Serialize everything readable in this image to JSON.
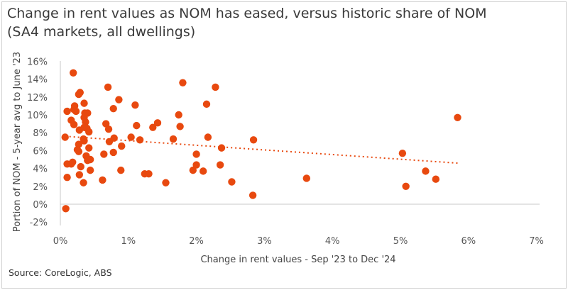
{
  "chart_data": {
    "type": "scatter",
    "title": "Change in rent values as NOM has eased, versus historic share of NOM (SA4 markets, all dwellings)",
    "xlabel": "Change in rent values - Sep '23 to Dec '24",
    "ylabel": "Portion of NOM - 5-year avg to June '23",
    "xlim": [
      0,
      7
    ],
    "ylim": [
      -2,
      16
    ],
    "x_ticks": [
      "0%",
      "1%",
      "2%",
      "3%",
      "4%",
      "5%",
      "6%",
      "7%"
    ],
    "y_ticks": [
      "-2%",
      "0%",
      "2%",
      "4%",
      "6%",
      "8%",
      "10%",
      "12%",
      "14%",
      "16%"
    ],
    "grid": false,
    "trendline": {
      "style": "dotted",
      "x": [
        0.07,
        5.84
      ],
      "y": [
        7.6,
        4.6
      ]
    },
    "marker_color": "#E8490F",
    "points": [
      [
        0.07,
        7.5
      ],
      [
        0.08,
        -0.5
      ],
      [
        0.1,
        4.5
      ],
      [
        0.1,
        10.4
      ],
      [
        0.1,
        3.0
      ],
      [
        0.19,
        14.7
      ],
      [
        0.16,
        4.5
      ],
      [
        0.18,
        4.7
      ],
      [
        0.2,
        10.6
      ],
      [
        0.21,
        11.0
      ],
      [
        0.23,
        10.4
      ],
      [
        0.16,
        9.4
      ],
      [
        0.2,
        8.9
      ],
      [
        0.29,
        12.5
      ],
      [
        0.27,
        12.3
      ],
      [
        0.28,
        8.3
      ],
      [
        0.27,
        6.7
      ],
      [
        0.25,
        6.1
      ],
      [
        0.27,
        5.9
      ],
      [
        0.3,
        4.2
      ],
      [
        0.28,
        3.3
      ],
      [
        0.34,
        2.4
      ],
      [
        0.35,
        11.3
      ],
      [
        0.36,
        10.2
      ],
      [
        0.35,
        9.7
      ],
      [
        0.37,
        9.2
      ],
      [
        0.35,
        8.6
      ],
      [
        0.34,
        7.3
      ],
      [
        0.35,
        7.1
      ],
      [
        0.39,
        8.5
      ],
      [
        0.4,
        10.2
      ],
      [
        0.42,
        8.1
      ],
      [
        0.38,
        5.4
      ],
      [
        0.4,
        4.9
      ],
      [
        0.42,
        6.3
      ],
      [
        0.44,
        3.8
      ],
      [
        0.44,
        5.0
      ],
      [
        0.62,
        2.7
      ],
      [
        0.64,
        5.6
      ],
      [
        0.67,
        9.0
      ],
      [
        0.7,
        13.1
      ],
      [
        0.71,
        8.4
      ],
      [
        0.72,
        7.0
      ],
      [
        0.78,
        10.7
      ],
      [
        0.78,
        5.8
      ],
      [
        0.79,
        7.4
      ],
      [
        0.89,
        3.8
      ],
      [
        0.86,
        11.7
      ],
      [
        0.9,
        6.5
      ],
      [
        1.04,
        7.5
      ],
      [
        1.1,
        11.1
      ],
      [
        1.12,
        8.8
      ],
      [
        1.17,
        7.2
      ],
      [
        1.24,
        3.4
      ],
      [
        1.3,
        3.4
      ],
      [
        1.36,
        8.6
      ],
      [
        1.43,
        9.1
      ],
      [
        1.55,
        2.4
      ],
      [
        1.66,
        7.3
      ],
      [
        1.74,
        10.0
      ],
      [
        1.76,
        8.7
      ],
      [
        1.8,
        13.6
      ],
      [
        1.95,
        3.8
      ],
      [
        2.0,
        5.6
      ],
      [
        2.0,
        4.4
      ],
      [
        2.1,
        3.7
      ],
      [
        2.15,
        11.2
      ],
      [
        2.17,
        7.5
      ],
      [
        2.28,
        13.1
      ],
      [
        2.35,
        4.4
      ],
      [
        2.37,
        6.3
      ],
      [
        2.52,
        2.5
      ],
      [
        2.83,
        1.0
      ],
      [
        2.84,
        7.2
      ],
      [
        3.62,
        2.9
      ],
      [
        5.03,
        5.7
      ],
      [
        5.08,
        2.0
      ],
      [
        5.37,
        3.7
      ],
      [
        5.52,
        2.8
      ],
      [
        5.84,
        9.7
      ]
    ]
  },
  "source": "Source: CoreLogic, ABS"
}
